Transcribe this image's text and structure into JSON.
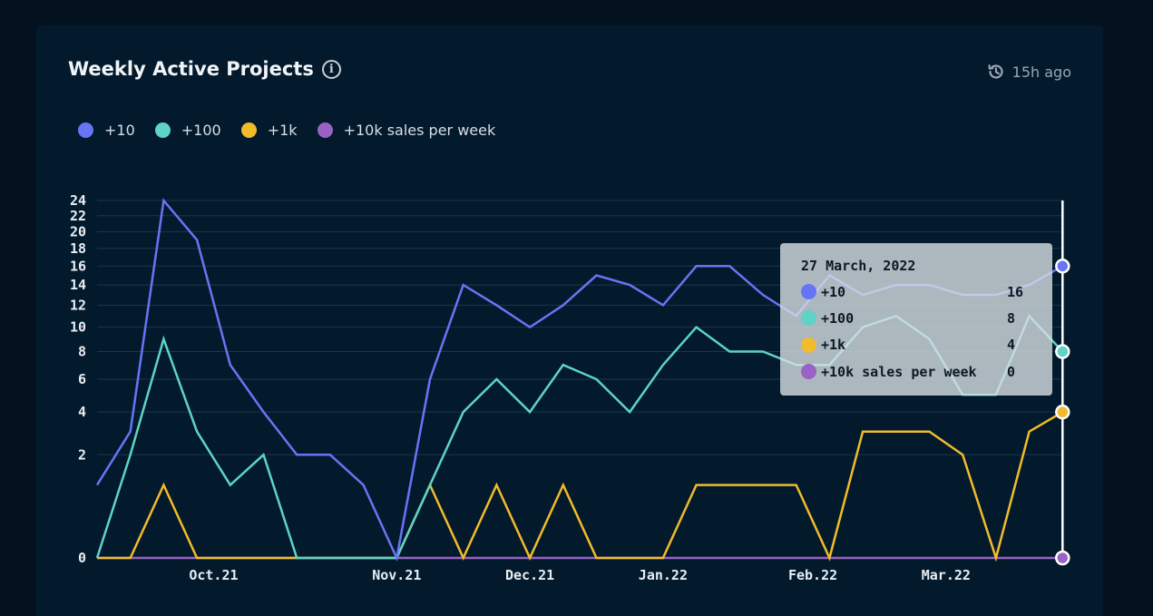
{
  "header": {
    "title": "Weekly Active Projects",
    "updated": "15h ago"
  },
  "colors": {
    "s10": "#6675f6",
    "s100": "#5ed3c6",
    "s1k": "#f2bb2b",
    "s10k": "#9a62c4",
    "grid": "#18374d"
  },
  "legend": [
    {
      "label": "+10",
      "color": "#6675f6"
    },
    {
      "label": "+100",
      "color": "#5ed3c6"
    },
    {
      "label": "+1k",
      "color": "#f2bb2b"
    },
    {
      "label": "+10k sales per week",
      "color": "#9a62c4"
    }
  ],
  "tooltip": {
    "date": "27 March, 2022",
    "rows": [
      {
        "label": "+10",
        "value": "16",
        "color": "#6675f6"
      },
      {
        "label": "+100",
        "value": "8",
        "color": "#5ed3c6"
      },
      {
        "label": "+1k",
        "value": "4",
        "color": "#f2bb2b"
      },
      {
        "label": "+10k sales per week",
        "value": "0",
        "color": "#9a62c4"
      }
    ]
  },
  "chart_data": {
    "type": "line",
    "title": "Weekly Active Projects",
    "y_scale": "sqrt",
    "ylim": [
      0,
      24
    ],
    "y_ticks": [
      0,
      2,
      4,
      6,
      8,
      10,
      12,
      14,
      16,
      18,
      20,
      22,
      24
    ],
    "x_ticks": [
      "Oct.21",
      "Nov.21",
      "Dec.21",
      "Jan.22",
      "Feb.22",
      "Mar.22"
    ],
    "x_tick_positions": [
      3.5,
      9,
      13,
      17,
      21.5,
      25.5
    ],
    "x": [
      0,
      1,
      2,
      3,
      4,
      5,
      6,
      7,
      8,
      9,
      10,
      11,
      12,
      13,
      14,
      15,
      16,
      17,
      18,
      19,
      20,
      21,
      22,
      23,
      24,
      25,
      26,
      27,
      28,
      29
    ],
    "series": [
      {
        "name": "+10",
        "color": "#6675f6",
        "values": [
          1,
          3,
          24,
          19,
          7,
          4,
          2,
          2,
          1,
          0,
          6,
          14,
          12,
          10,
          12,
          15,
          14,
          12,
          16,
          16,
          13,
          11,
          15,
          13,
          14,
          14,
          13,
          13,
          14,
          16
        ]
      },
      {
        "name": "+100",
        "color": "#5ed3c6",
        "values": [
          0,
          2,
          9,
          3,
          1,
          2,
          0,
          0,
          0,
          0,
          1,
          4,
          6,
          4,
          7,
          6,
          4,
          7,
          10,
          8,
          8,
          7,
          7,
          10,
          11,
          9,
          5,
          5,
          11,
          8
        ]
      },
      {
        "name": "+1k",
        "color": "#f2bb2b",
        "values": [
          0,
          0,
          1,
          0,
          0,
          0,
          0,
          0,
          0,
          0,
          1,
          0,
          1,
          0,
          1,
          0,
          0,
          0,
          1,
          1,
          1,
          1,
          0,
          3,
          3,
          3,
          2,
          0,
          3,
          4
        ]
      },
      {
        "name": "+10k sales per week",
        "color": "#9a62c4",
        "values": [
          0,
          0,
          0,
          0,
          0,
          0,
          0,
          0,
          0,
          0,
          0,
          0,
          0,
          0,
          0,
          0,
          0,
          0,
          0,
          0,
          0,
          0,
          0,
          0,
          0,
          0,
          0,
          0,
          0,
          0
        ]
      }
    ],
    "highlight_index": 29,
    "legend_position": "top-left",
    "grid": true
  }
}
